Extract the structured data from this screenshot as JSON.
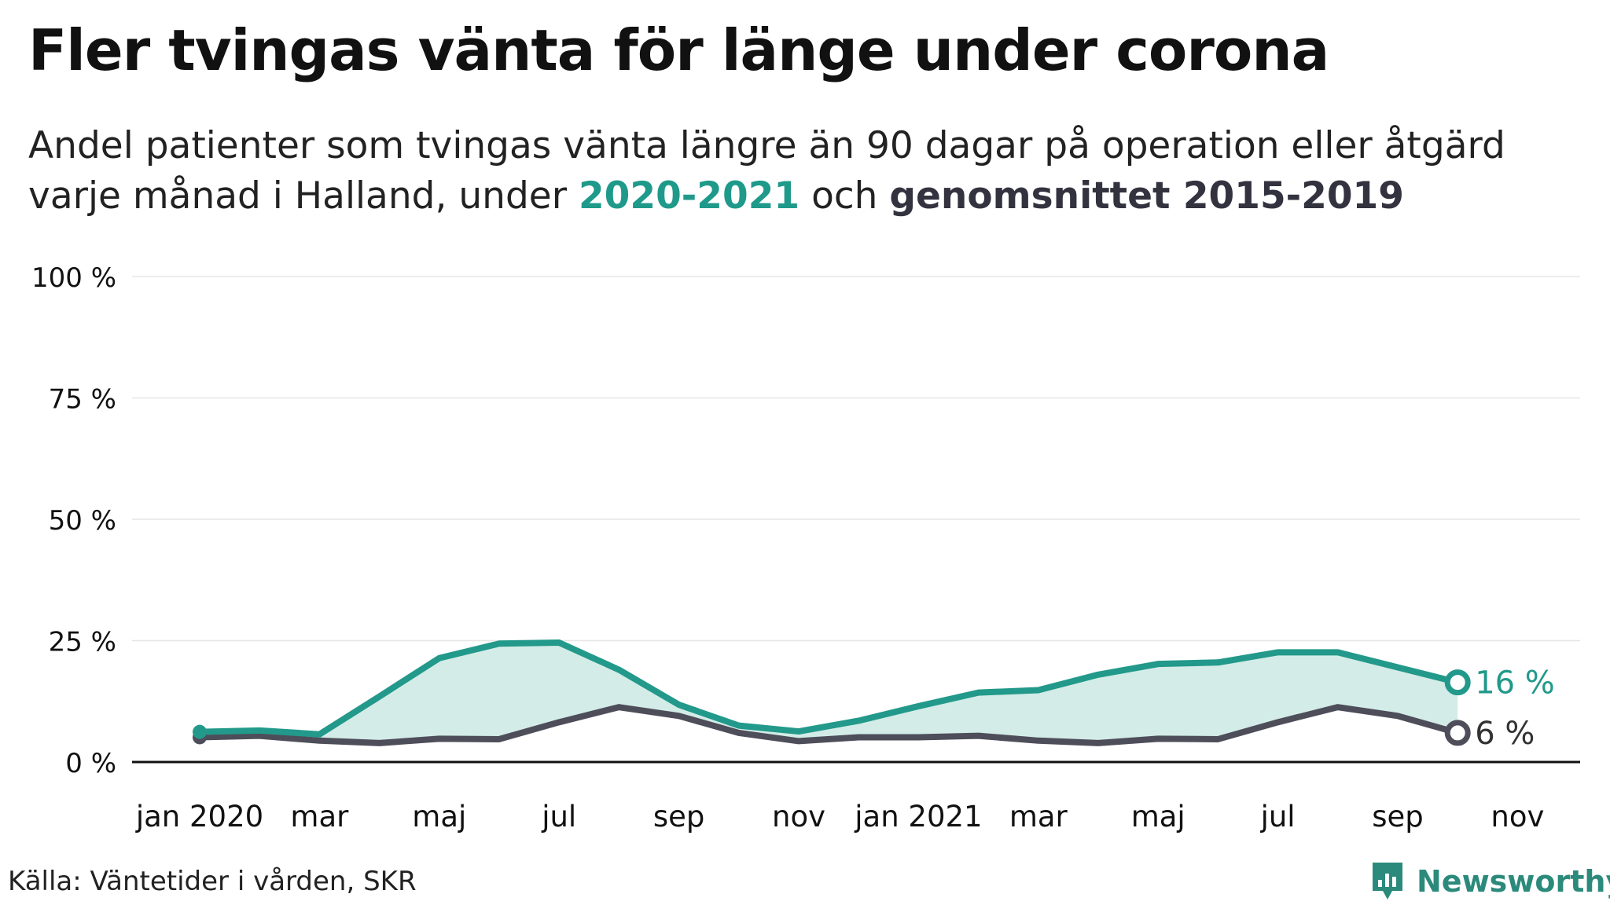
{
  "title": "Fler tvingas vänta för länge under corona",
  "subtitle": {
    "line1": "Andel patienter som tvingas vänta längre än 90 dagar på operation eller åtgärd",
    "line2_prefix": "varje månad i Halland, under",
    "highlight_a": "2020-2021",
    "connector": "och",
    "highlight_b": "genomsnittet 2015-2019"
  },
  "source": "Källa: Väntetider i vården, SKR",
  "brand": {
    "name": "Newsworthy",
    "icon": "newsworthy-logo-icon"
  },
  "colors": {
    "series_2020_2021": "#22998a",
    "series_avg": "#4e4d5a",
    "fill_between": "#d3ece7",
    "grid": "#e6e6e6",
    "axis": "#111111"
  },
  "chart_data": {
    "type": "line",
    "title": "Fler tvingas vänta för länge under corona",
    "ylim": [
      0,
      100
    ],
    "yticks": [
      {
        "value": 0,
        "label": "0 %"
      },
      {
        "value": 25,
        "label": "25 %"
      },
      {
        "value": 50,
        "label": "50 %"
      },
      {
        "value": 75,
        "label": "75 %"
      },
      {
        "value": 100,
        "label": "100 %"
      }
    ],
    "x": [
      "2020-01",
      "2020-02",
      "2020-03",
      "2020-04",
      "2020-05",
      "2020-06",
      "2020-07",
      "2020-08",
      "2020-09",
      "2020-10",
      "2020-11",
      "2020-12",
      "2021-01",
      "2021-02",
      "2021-03",
      "2021-04",
      "2021-05",
      "2021-06",
      "2021-07",
      "2021-08",
      "2021-09",
      "2021-10"
    ],
    "xlim": [
      "2020-01",
      "2021-11"
    ],
    "xticks": [
      {
        "month": "2020-01",
        "label": "jan 2020"
      },
      {
        "month": "2020-03",
        "label": "mar"
      },
      {
        "month": "2020-05",
        "label": "maj"
      },
      {
        "month": "2020-07",
        "label": "jul"
      },
      {
        "month": "2020-09",
        "label": "sep"
      },
      {
        "month": "2020-11",
        "label": "nov"
      },
      {
        "month": "2021-01",
        "label": "jan 2021"
      },
      {
        "month": "2021-03",
        "label": "mar"
      },
      {
        "month": "2021-05",
        "label": "maj"
      },
      {
        "month": "2021-07",
        "label": "jul"
      },
      {
        "month": "2021-09",
        "label": "sep"
      },
      {
        "month": "2021-11",
        "label": "nov"
      }
    ],
    "series": [
      {
        "name": "2020-2021",
        "values": [
          6.2,
          6.5,
          5.7,
          13.5,
          21.4,
          24.4,
          24.6,
          19.0,
          11.8,
          7.5,
          6.3,
          8.5,
          11.5,
          14.3,
          14.8,
          18.0,
          20.2,
          20.5,
          22.6,
          22.6,
          19.5,
          16.4
        ],
        "end_label": "16 %"
      },
      {
        "name": "genomsnittet 2015-2019",
        "values": [
          5.1,
          5.4,
          4.4,
          3.9,
          4.8,
          4.7,
          8.2,
          11.3,
          9.5,
          6.0,
          4.3,
          5.1,
          5.1,
          5.4,
          4.4,
          3.9,
          4.8,
          4.7,
          8.2,
          11.3,
          9.5,
          6.0
        ],
        "end_label": "6 %"
      }
    ],
    "grid": true,
    "legend": "none"
  }
}
